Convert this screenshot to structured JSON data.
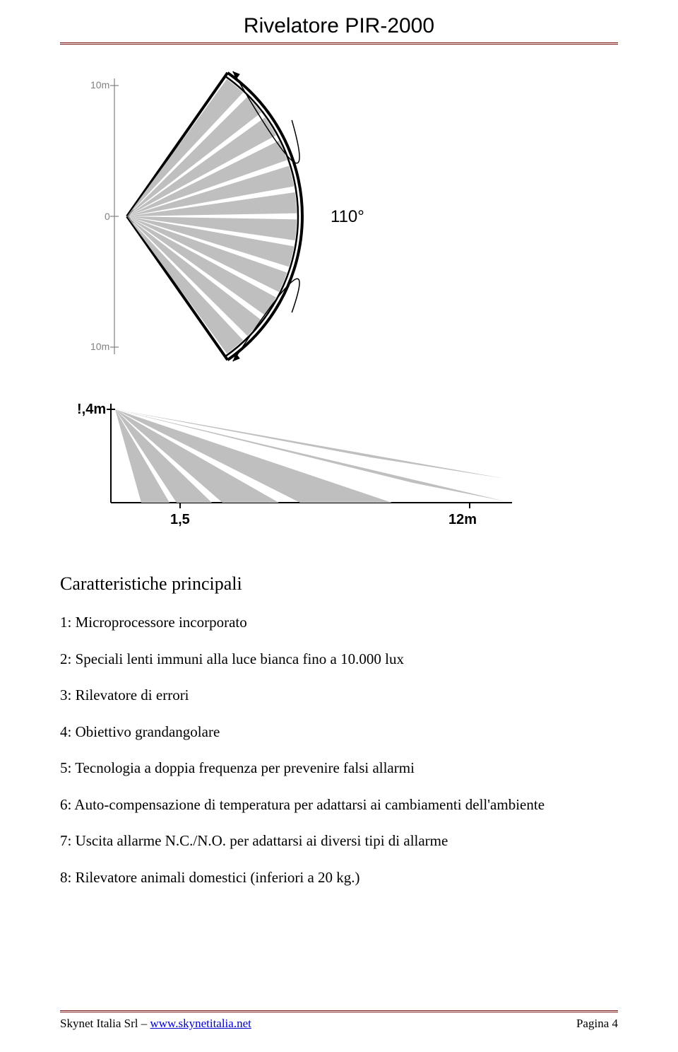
{
  "header": {
    "title": "Rivelatore PIR-2000"
  },
  "fanDiagram": {
    "origin_label": "0",
    "top_label": "10m",
    "bottom_label": "10m",
    "angle_label": "110°",
    "beam_color": "#bfbfbf",
    "outline_color": "#000000",
    "beam_count": 12,
    "half_angle_deg": 55,
    "inner_radius": 1,
    "outer_radius": 240,
    "angle_fontsize": 24,
    "axis_fontsize": 14,
    "axis_color": "#808080"
  },
  "sideDiagram": {
    "height_label": "!,4m",
    "near_label": "1,5",
    "far_label": "12m",
    "beam_color": "#bfbfbf",
    "outline_color": "#000000",
    "axis_fontsize": 20,
    "axis_fontweight": "bold"
  },
  "section_title": "Caratteristiche principali",
  "features": [
    "1: Microprocessore incorporato",
    "2: Speciali lenti immuni alla luce bianca fino a 10.000 lux",
    "3: Rilevatore di errori",
    "4: Obiettivo grandangolare",
    "5: Tecnologia a doppia frequenza per prevenire falsi allarmi",
    "6: Auto-compensazione di temperatura per adattarsi ai cambiamenti dell'ambiente",
    "7: Uscita allarme N.C./N.O. per adattarsi ai diversi tipi di allarme",
    "8: Rilevatore animali domestici (inferiori a 20 kg.)"
  ],
  "footer": {
    "left_prefix": "Skynet Italia Srl – ",
    "link_text": "www.skynetitalia.net",
    "right": "Pagina 4"
  }
}
